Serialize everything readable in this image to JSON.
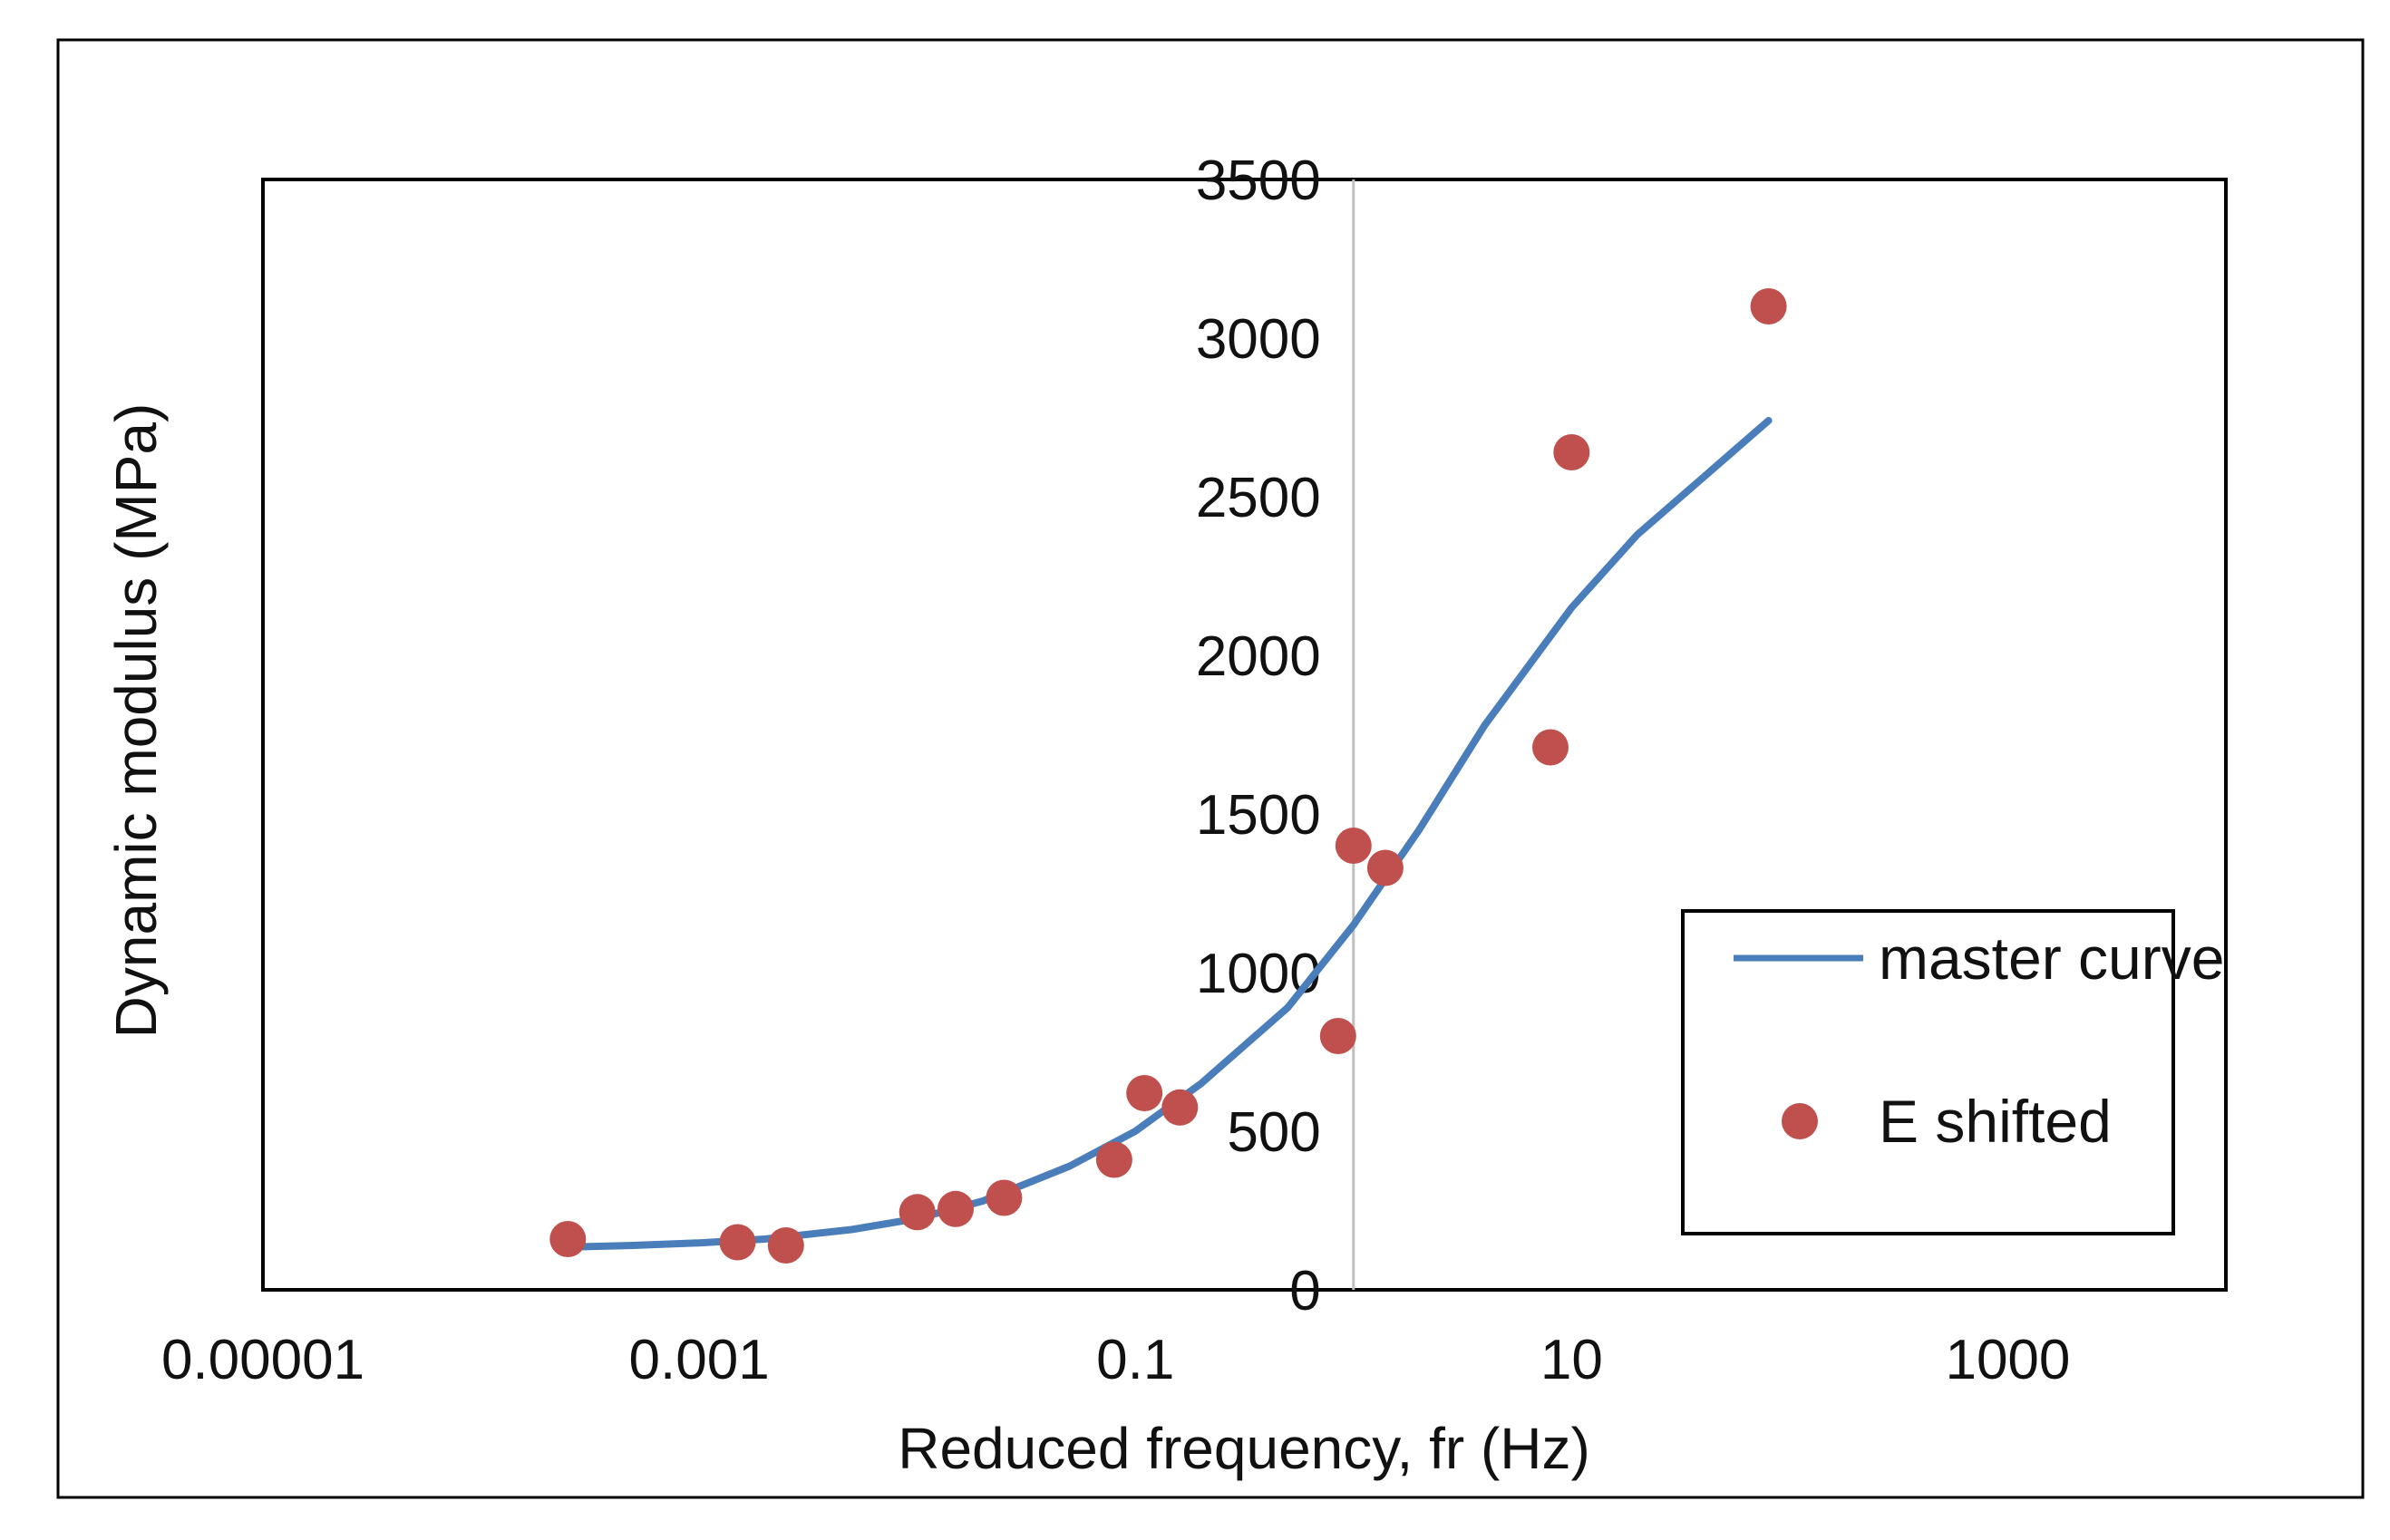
{
  "chart_data": {
    "type": "scatter",
    "title": "",
    "xlabel": "Reduced frequency, fr (Hz)",
    "ylabel": "Dynamic modulus  (MPa)",
    "xscale": "log",
    "xlim": [
      1e-05,
      10000
    ],
    "ylim": [
      0,
      3500
    ],
    "x_ticks": [
      1e-05,
      0.001,
      0.1,
      10,
      1000
    ],
    "x_tick_labels": [
      "0.00001",
      "0.001",
      "0.1",
      "10",
      "1000"
    ],
    "y_ticks": [
      0,
      500,
      1000,
      1500,
      2000,
      2500,
      3000,
      3500
    ],
    "y_tick_labels": [
      "0",
      "500",
      "1000",
      "1500",
      "2000",
      "2500",
      "3000",
      "3500"
    ],
    "y_axis_crosses_at_x": 1,
    "grid": false,
    "legend_position": "bottom-right",
    "series": [
      {
        "name": "master curve",
        "kind": "line",
        "color": "#4a7ebb",
        "points": [
          [
            0.00025,
            135
          ],
          [
            0.0005,
            140
          ],
          [
            0.001,
            148
          ],
          [
            0.002,
            160
          ],
          [
            0.005,
            190
          ],
          [
            0.01,
            225
          ],
          [
            0.02,
            280
          ],
          [
            0.05,
            390
          ],
          [
            0.1,
            500
          ],
          [
            0.2,
            650
          ],
          [
            0.5,
            890
          ],
          [
            1,
            1150
          ],
          [
            2,
            1450
          ],
          [
            4,
            1780
          ],
          [
            10,
            2150
          ],
          [
            20,
            2380
          ],
          [
            40,
            2560
          ],
          [
            80,
            2740
          ]
        ]
      },
      {
        "name": "E shifted",
        "kind": "scatter",
        "color": "#c0504d",
        "points": [
          [
            0.00025,
            160
          ],
          [
            0.0015,
            150
          ],
          [
            0.0025,
            140
          ],
          [
            0.01,
            245
          ],
          [
            0.015,
            255
          ],
          [
            0.025,
            290
          ],
          [
            0.08,
            410
          ],
          [
            0.11,
            620
          ],
          [
            0.16,
            575
          ],
          [
            0.85,
            800
          ],
          [
            1.0,
            1400
          ],
          [
            1.4,
            1330
          ],
          [
            8.0,
            1710
          ],
          [
            10.0,
            2640
          ],
          [
            80,
            3100
          ]
        ]
      }
    ]
  },
  "colors": {
    "master_curve": "#4a7ebb",
    "e_shifted": "#c0504d",
    "frame": "#000000",
    "y_axis_line": "#bfbfbf"
  }
}
